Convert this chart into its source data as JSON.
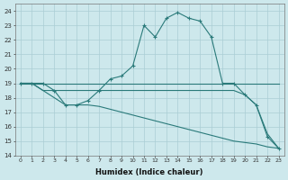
{
  "xlabel": "Humidex (Indice chaleur)",
  "ylabel": "",
  "bg_color": "#cde8ec",
  "line_color": "#2a7a7a",
  "grid_color": "#aacdd4",
  "xlim": [
    -0.5,
    23.5
  ],
  "ylim": [
    14,
    24.5
  ],
  "yticks": [
    14,
    15,
    16,
    17,
    18,
    19,
    20,
    21,
    22,
    23,
    24
  ],
  "xticks": [
    0,
    1,
    2,
    3,
    4,
    5,
    6,
    7,
    8,
    9,
    10,
    11,
    12,
    13,
    14,
    15,
    16,
    17,
    18,
    19,
    20,
    21,
    22,
    23
  ],
  "lines": [
    {
      "x": [
        0,
        1,
        2,
        3,
        4,
        5,
        6,
        7,
        8,
        9,
        10,
        11,
        12,
        13,
        14,
        15,
        16,
        17,
        18,
        19,
        20,
        21,
        22,
        23
      ],
      "y": [
        19.0,
        19.0,
        19.0,
        18.5,
        17.5,
        17.5,
        17.8,
        18.5,
        19.3,
        19.5,
        20.2,
        23.0,
        22.2,
        23.5,
        23.9,
        23.5,
        23.3,
        22.2,
        19.0,
        19.0,
        18.2,
        17.5,
        15.3,
        14.5
      ],
      "marker": "+"
    },
    {
      "x": [
        0,
        1,
        2,
        3,
        4,
        5,
        6,
        7,
        8,
        9,
        10,
        11,
        12,
        13,
        14,
        15,
        16,
        17,
        18,
        19,
        20,
        21,
        22,
        23
      ],
      "y": [
        19.0,
        19.0,
        19.0,
        19.0,
        19.0,
        19.0,
        19.0,
        19.0,
        19.0,
        19.0,
        19.0,
        19.0,
        19.0,
        19.0,
        19.0,
        19.0,
        19.0,
        19.0,
        19.0,
        19.0,
        19.0,
        19.0,
        19.0,
        19.0
      ],
      "marker": null
    },
    {
      "x": [
        0,
        1,
        2,
        3,
        4,
        5,
        6,
        7,
        8,
        9,
        10,
        11,
        12,
        13,
        14,
        15,
        16,
        17,
        18,
        19,
        20,
        21,
        22,
        23
      ],
      "y": [
        19.0,
        19.0,
        18.5,
        18.5,
        18.5,
        18.5,
        18.5,
        18.5,
        18.5,
        18.5,
        18.5,
        18.5,
        18.5,
        18.5,
        18.5,
        18.5,
        18.5,
        18.5,
        18.5,
        18.5,
        18.2,
        17.5,
        15.5,
        14.5
      ],
      "marker": null
    },
    {
      "x": [
        0,
        1,
        2,
        3,
        4,
        5,
        6,
        7,
        8,
        9,
        10,
        11,
        12,
        13,
        14,
        15,
        16,
        17,
        18,
        19,
        20,
        21,
        22,
        23
      ],
      "y": [
        19.0,
        19.0,
        18.5,
        18.0,
        17.5,
        17.5,
        17.5,
        17.4,
        17.2,
        17.0,
        16.8,
        16.6,
        16.4,
        16.2,
        16.0,
        15.8,
        15.6,
        15.4,
        15.2,
        15.0,
        14.9,
        14.8,
        14.6,
        14.5
      ],
      "marker": null
    }
  ]
}
